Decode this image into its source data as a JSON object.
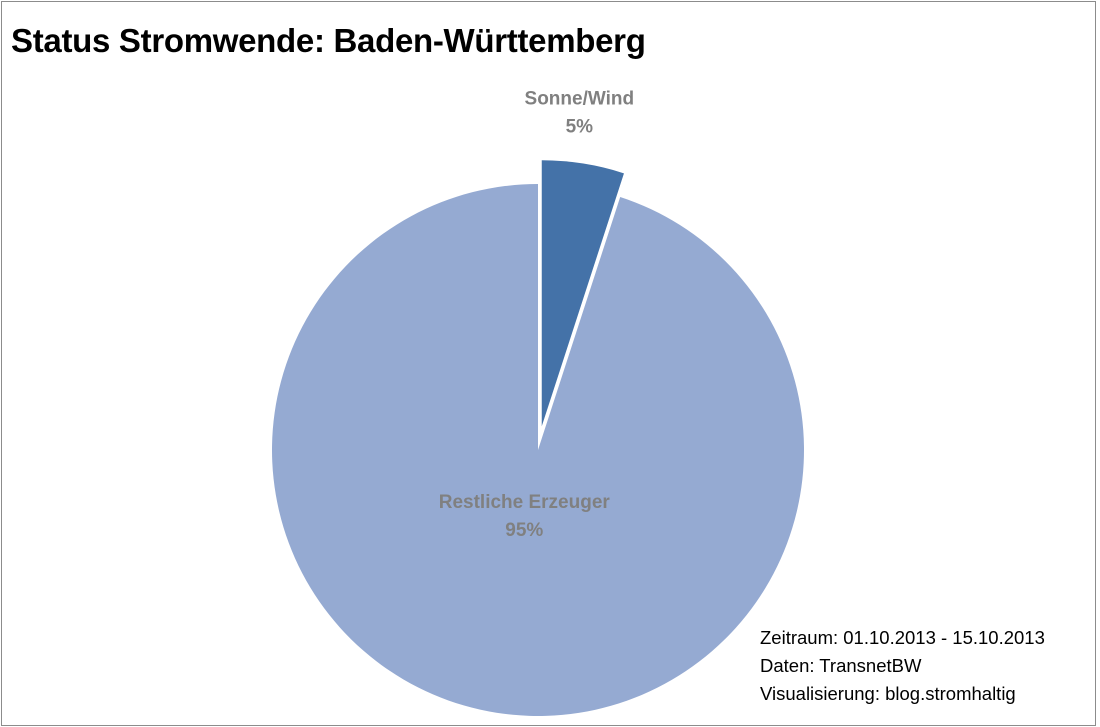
{
  "chart_data": {
    "type": "pie",
    "title": "Status Stromwende: Baden-Württemberg",
    "slices": [
      {
        "name": "Sonne/Wind",
        "value": 5,
        "label": "5%",
        "color": "#4472a8",
        "exploded": true
      },
      {
        "name": "Restliche Erzeuger",
        "value": 95,
        "label": "95%",
        "color": "#95aad2",
        "exploded": false
      }
    ],
    "start_angle": "12 o'clock, clockwise",
    "legend": "none"
  },
  "footnote": {
    "period": "Zeitraum: 01.10.2013 - 15.10.2013",
    "source": "Daten: TransnetBW",
    "visualization": "Visualisierung: blog.stromhaltig"
  },
  "colors": {
    "background": "#ffffff",
    "border": "#8c8c8c",
    "label": "#808080"
  }
}
